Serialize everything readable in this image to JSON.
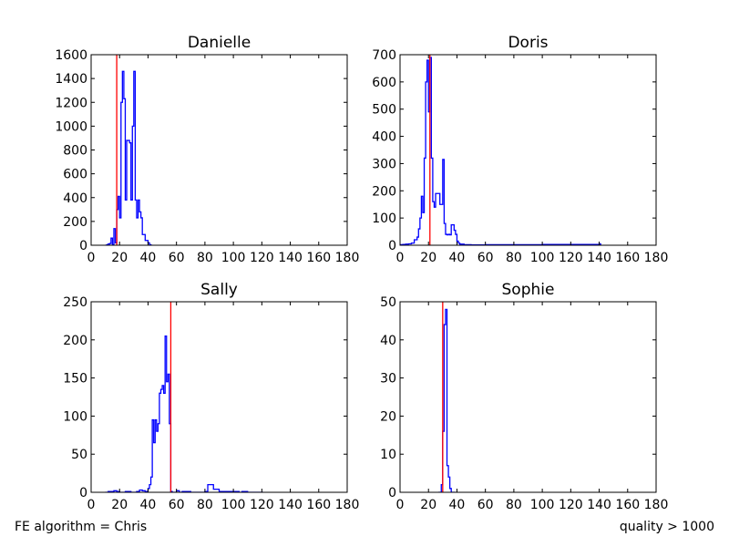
{
  "footer": {
    "left_text": "FE algorithm = Chris",
    "right_text": "quality > 1000"
  },
  "colors": {
    "histogram": "#0000ff",
    "marker_line": "#ff0000",
    "axes": "#000000"
  },
  "chart_data": [
    {
      "type": "line",
      "style": "step-histogram",
      "title": "Danielle",
      "xlim": [
        0,
        180
      ],
      "ylim": [
        0,
        1600
      ],
      "xticks": [
        0,
        20,
        40,
        60,
        80,
        100,
        120,
        140,
        160,
        180
      ],
      "yticks": [
        0,
        200,
        400,
        600,
        800,
        1000,
        1200,
        1400,
        1600
      ],
      "marker_x": 18,
      "series": [
        {
          "x": [
            10,
            11,
            12,
            13,
            14,
            15,
            16,
            17,
            18,
            19,
            20,
            21,
            22,
            23,
            24,
            25,
            26,
            27,
            28,
            29,
            30,
            31,
            32,
            33,
            34,
            35,
            36,
            37,
            38,
            39,
            40,
            41,
            42
          ],
          "y": [
            0,
            5,
            10,
            15,
            60,
            5,
            140,
            20,
            300,
            410,
            230,
            1200,
            1460,
            1230,
            380,
            880,
            880,
            860,
            380,
            1000,
            1460,
            380,
            230,
            380,
            280,
            230,
            90,
            90,
            40,
            40,
            20,
            5,
            0
          ]
        }
      ]
    },
    {
      "type": "line",
      "style": "step-histogram",
      "title": "Doris",
      "xlim": [
        0,
        180
      ],
      "ylim": [
        0,
        700
      ],
      "xticks": [
        0,
        20,
        40,
        60,
        80,
        100,
        120,
        140,
        160,
        180
      ],
      "yticks": [
        0,
        100,
        200,
        300,
        400,
        500,
        600,
        700
      ],
      "marker_x": 21,
      "series": [
        {
          "x": [
            0,
            2,
            4,
            6,
            8,
            10,
            12,
            13,
            14,
            15,
            16,
            17,
            18,
            19,
            20,
            21,
            22,
            23,
            24,
            25,
            26,
            27,
            28,
            29,
            30,
            31,
            32,
            33,
            34,
            35,
            36,
            37,
            38,
            39,
            40,
            41,
            42,
            45,
            50,
            60,
            100,
            140
          ],
          "y": [
            2,
            3,
            4,
            5,
            8,
            20,
            30,
            60,
            100,
            180,
            120,
            320,
            600,
            680,
            490,
            690,
            320,
            160,
            140,
            190,
            190,
            190,
            150,
            150,
            315,
            80,
            40,
            38,
            40,
            38,
            75,
            75,
            55,
            40,
            15,
            8,
            4,
            2,
            1,
            2,
            3,
            5
          ]
        }
      ]
    },
    {
      "type": "line",
      "style": "step-histogram",
      "title": "Sally",
      "xlim": [
        0,
        180
      ],
      "ylim": [
        0,
        250
      ],
      "xticks": [
        0,
        20,
        40,
        60,
        80,
        100,
        120,
        140,
        160,
        180
      ],
      "yticks": [
        0,
        50,
        100,
        150,
        200,
        250
      ],
      "marker_x": 56,
      "series": [
        {
          "x": [
            10,
            12,
            14,
            16,
            18,
            20,
            24,
            28,
            32,
            34,
            36,
            38,
            40,
            41,
            42,
            43,
            44,
            45,
            46,
            47,
            48,
            49,
            50,
            51,
            52,
            53,
            54,
            55,
            56,
            57,
            58,
            60,
            62,
            64,
            70,
            80,
            82,
            84,
            86,
            90,
            100,
            104,
            106,
            110,
            120
          ],
          "y": [
            0,
            1,
            1,
            2,
            1,
            0,
            1,
            0,
            1,
            3,
            2,
            1,
            5,
            10,
            20,
            95,
            65,
            95,
            80,
            90,
            130,
            135,
            140,
            130,
            205,
            145,
            155,
            90,
            1,
            0,
            0,
            2,
            0,
            1,
            0,
            1,
            10,
            10,
            4,
            1,
            1,
            0,
            1,
            0,
            0
          ]
        }
      ]
    },
    {
      "type": "line",
      "style": "step-histogram",
      "title": "Sophie",
      "xlim": [
        0,
        180
      ],
      "ylim": [
        0,
        50
      ],
      "xticks": [
        0,
        20,
        40,
        60,
        80,
        100,
        120,
        140,
        160,
        180
      ],
      "yticks": [
        0,
        10,
        20,
        30,
        40,
        50
      ],
      "marker_x": 30,
      "series": [
        {
          "x": [
            27,
            28,
            29,
            30,
            31,
            32,
            33,
            34,
            35,
            36,
            37,
            38
          ],
          "y": [
            0,
            0,
            2,
            16,
            44,
            48,
            7,
            4,
            1,
            0,
            0,
            0
          ]
        }
      ]
    }
  ]
}
